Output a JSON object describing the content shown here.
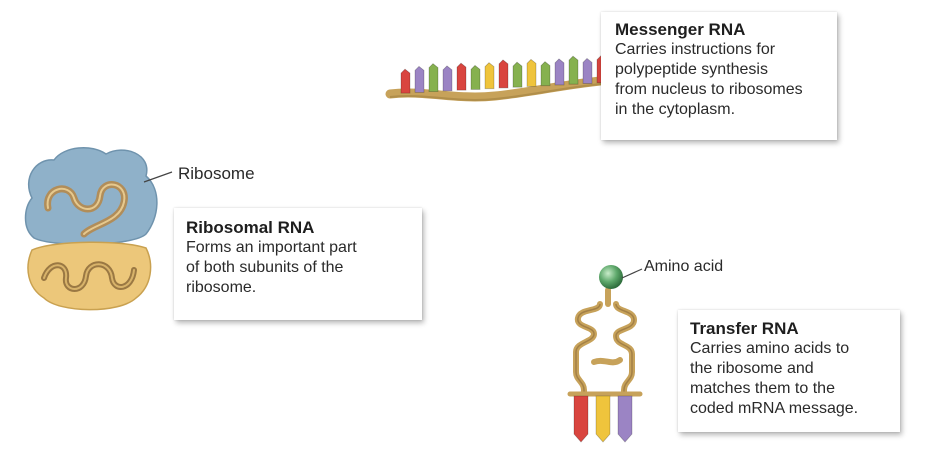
{
  "messenger_rna": {
    "title": "Messenger RNA",
    "lines": [
      "Carries instructions for",
      "polypeptide synthesis",
      "from nucleus to ribosomes",
      "in the cytoplasm."
    ]
  },
  "ribosome_label": "Ribosome",
  "ribosomal_rna": {
    "title": "Ribosomal RNA",
    "lines": [
      "Forms an important part",
      "of both subunits of the",
      "ribosome."
    ]
  },
  "amino_acid_label": "Amino acid",
  "transfer_rna": {
    "title": "Transfer RNA",
    "lines": [
      "Carries amino acids to",
      "the ribosome and",
      "matches them to the",
      "coded mRNA message."
    ]
  },
  "colors": {
    "base_red": "#d9453f",
    "base_purple": "#9b84c4",
    "base_green": "#86b14f",
    "base_yellow": "#efc43c",
    "backbone": "#c7a25a",
    "ribosome_large": "#8fb1c9",
    "ribosome_small": "#ecc77a",
    "rrna_ribbon": "#b58a4c",
    "amino_acid": "#5ea86b"
  },
  "icons": {
    "mrna": "mrna-strand-icon",
    "ribosome": "ribosome-icon",
    "trna": "trna-icon",
    "amino_acid": "amino-acid-sphere-icon"
  }
}
